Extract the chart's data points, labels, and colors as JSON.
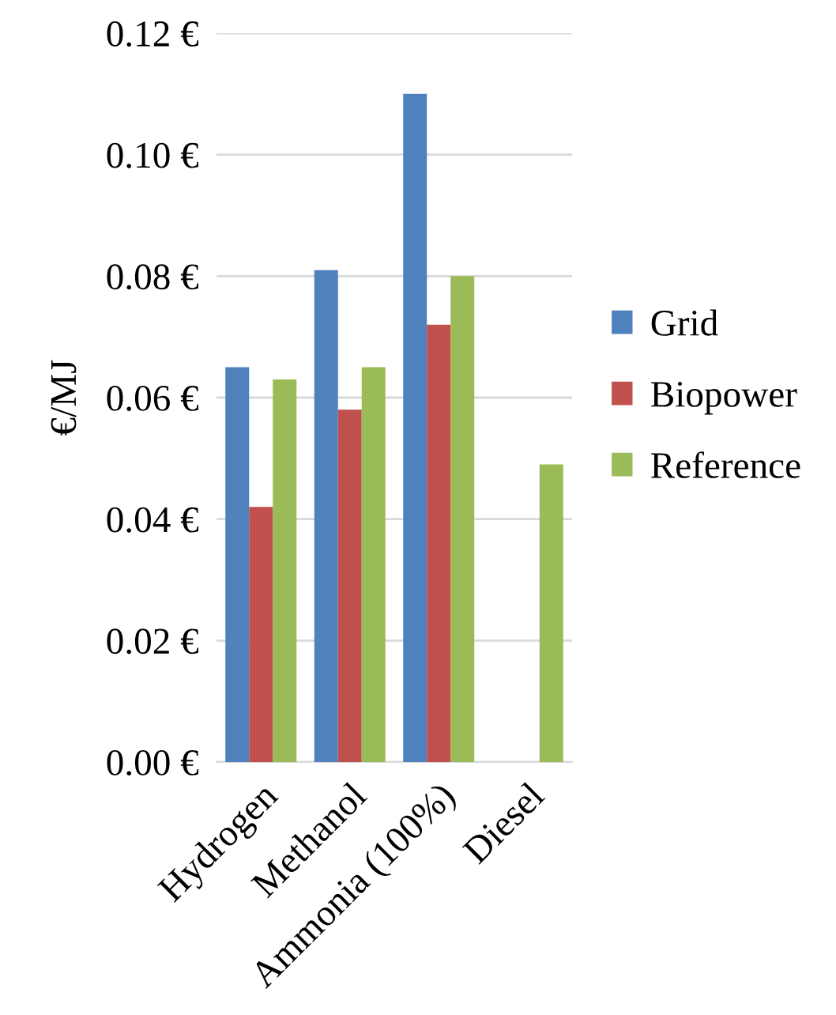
{
  "chart_data": {
    "type": "bar",
    "ylabel": "€/MJ",
    "categories": [
      "Hydrogen",
      "Methanol",
      "Ammonia (100%)",
      "Diesel"
    ],
    "series": [
      {
        "name": "Grid",
        "color": "#4f81bd",
        "values": [
          0.065,
          0.081,
          0.11,
          null
        ]
      },
      {
        "name": "Biopower",
        "color": "#c0504d",
        "values": [
          0.042,
          0.058,
          0.072,
          null
        ]
      },
      {
        "name": "Reference",
        "color": "#9bbb59",
        "values": [
          0.063,
          0.065,
          0.08,
          0.049
        ]
      }
    ],
    "ylim": [
      0,
      0.12
    ],
    "yticks": [
      {
        "value": 0,
        "label": "0.00 €"
      },
      {
        "value": 0.02,
        "label": "0.02 €"
      },
      {
        "value": 0.04,
        "label": "0.04 €"
      },
      {
        "value": 0.06,
        "label": "0.06 €"
      },
      {
        "value": 0.08,
        "label": "0.08 €"
      },
      {
        "value": 0.1,
        "label": "0.10 €"
      },
      {
        "value": 0.12,
        "label": "0.12 €"
      }
    ],
    "grid": "y",
    "legend": "right"
  }
}
